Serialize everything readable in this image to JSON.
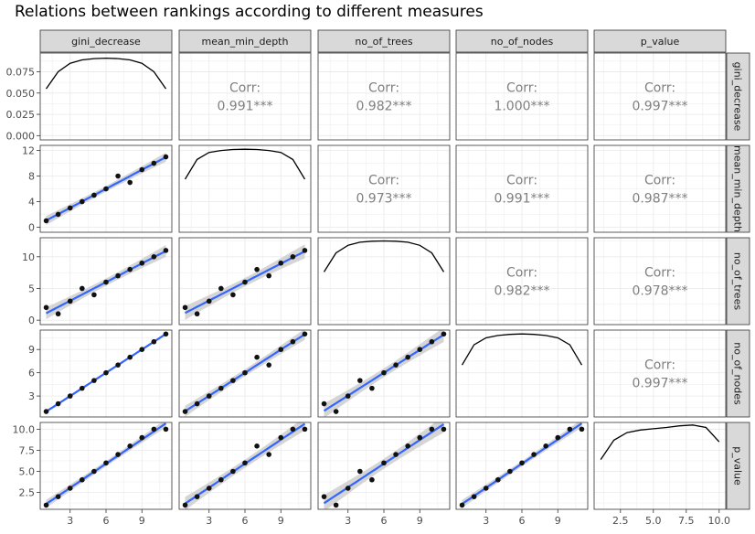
{
  "chart_data": {
    "type": "scatter-matrix",
    "title": "Relations between rankings according to different measures",
    "variables": [
      "gini_decrease",
      "mean_min_depth",
      "no_of_trees",
      "no_of_nodes",
      "p_value"
    ],
    "row_strip_labels": [
      "gini_decrease",
      "mean_min_depth",
      "no_of_trees",
      "no_of_nodes",
      "p_value"
    ],
    "corr_label": "Corr:",
    "correlations": [
      {
        "row": 0,
        "col": 1,
        "text": "0.991***"
      },
      {
        "row": 0,
        "col": 2,
        "text": "0.982***"
      },
      {
        "row": 0,
        "col": 3,
        "text": "1.000***"
      },
      {
        "row": 0,
        "col": 4,
        "text": "0.997***"
      },
      {
        "row": 1,
        "col": 2,
        "text": "0.973***"
      },
      {
        "row": 1,
        "col": 3,
        "text": "0.991***"
      },
      {
        "row": 1,
        "col": 4,
        "text": "0.987***"
      },
      {
        "row": 2,
        "col": 3,
        "text": "0.982***"
      },
      {
        "row": 2,
        "col": 4,
        "text": "0.978***"
      },
      {
        "row": 3,
        "col": 4,
        "text": "0.997***"
      }
    ],
    "x_ticks": [
      {
        "values": [
          3,
          6,
          9
        ],
        "labels": [
          "3",
          "6",
          "9"
        ],
        "range": [
          0.5,
          11.5
        ]
      },
      {
        "values": [
          3,
          6,
          9
        ],
        "labels": [
          "3",
          "6",
          "9"
        ],
        "range": [
          0.5,
          11.5
        ]
      },
      {
        "values": [
          3,
          6,
          9
        ],
        "labels": [
          "3",
          "6",
          "9"
        ],
        "range": [
          0.5,
          11.5
        ]
      },
      {
        "values": [
          3,
          6,
          9
        ],
        "labels": [
          "3",
          "6",
          "9"
        ],
        "range": [
          0.5,
          11.5
        ]
      },
      {
        "values": [
          2.5,
          5.0,
          7.5,
          10.0
        ],
        "labels": [
          "2.5",
          "5.0",
          "7.5",
          "10.0"
        ],
        "range": [
          0.5,
          10.5
        ]
      }
    ],
    "y_ticks": [
      {
        "values": [
          0.0,
          0.025,
          0.05,
          0.075
        ],
        "labels": [
          "0.000",
          "0.025",
          "0.050",
          "0.075"
        ],
        "range": [
          -0.005,
          0.097
        ]
      },
      {
        "values": [
          0,
          4,
          8,
          12
        ],
        "labels": [
          "0",
          "4",
          "8",
          "12"
        ],
        "range": [
          -0.8,
          12.8
        ]
      },
      {
        "values": [
          0,
          5,
          10
        ],
        "labels": [
          "0",
          "5",
          "10"
        ],
        "range": [
          -0.7,
          13
        ]
      },
      {
        "values": [
          3,
          6,
          9
        ],
        "labels": [
          "3",
          "6",
          "9"
        ],
        "range": [
          0.3,
          11.5
        ]
      },
      {
        "values": [
          2.5,
          5.0,
          7.5,
          10.0
        ],
        "labels": [
          "2.5",
          "5.0",
          "7.5",
          "10.0"
        ],
        "range": [
          0.5,
          10.8
        ]
      }
    ],
    "points": {
      "gini_decrease": [
        1,
        2,
        3,
        4,
        5,
        6,
        7,
        8,
        9,
        10,
        11
      ],
      "mean_min_depth": [
        1,
        2,
        3,
        4,
        5,
        6,
        8,
        7,
        9,
        10,
        11
      ],
      "no_of_trees": [
        2,
        1,
        3,
        5,
        4,
        6,
        7,
        8,
        9,
        10,
        11
      ],
      "no_of_nodes": [
        1,
        2,
        3,
        4,
        5,
        6,
        7,
        8,
        9,
        10,
        11
      ],
      "p_value": [
        1,
        2,
        3,
        4,
        5,
        6,
        7,
        8,
        9,
        10,
        10
      ]
    },
    "density_curves": [
      {
        "x": [
          1,
          2,
          3,
          4,
          5,
          6,
          7,
          8,
          9,
          10,
          11
        ],
        "y": [
          0.055,
          0.075,
          0.085,
          0.089,
          0.0905,
          0.091,
          0.0905,
          0.089,
          0.085,
          0.075,
          0.055
        ]
      },
      {
        "x": [
          1,
          2,
          3,
          4,
          5,
          6,
          7,
          8,
          9,
          10,
          11
        ],
        "y": [
          7.5,
          10.6,
          11.7,
          12.0,
          12.15,
          12.2,
          12.15,
          12.0,
          11.7,
          10.6,
          7.5
        ]
      },
      {
        "x": [
          1,
          2,
          3,
          4,
          5,
          6,
          7,
          8,
          9,
          10,
          11
        ],
        "y": [
          7.6,
          10.6,
          11.8,
          12.3,
          12.45,
          12.5,
          12.45,
          12.3,
          11.8,
          10.6,
          7.6
        ]
      },
      {
        "x": [
          1,
          2,
          3,
          4,
          5,
          6,
          7,
          8,
          9,
          10,
          11
        ],
        "y": [
          7.0,
          9.6,
          10.5,
          10.8,
          10.95,
          11.0,
          10.95,
          10.8,
          10.5,
          9.6,
          7.0
        ]
      },
      {
        "x": [
          1,
          2,
          3,
          4,
          5,
          6,
          7,
          8,
          9,
          10
        ],
        "y": [
          6.4,
          8.7,
          9.6,
          9.9,
          10.05,
          10.2,
          10.4,
          10.5,
          10.2,
          8.5
        ]
      }
    ],
    "smooth_color": "#3366FF",
    "ribbon_color": "#D0D0D0",
    "strip_fill": "#D9D9D9",
    "corr_color": "#808080",
    "grid": true
  }
}
